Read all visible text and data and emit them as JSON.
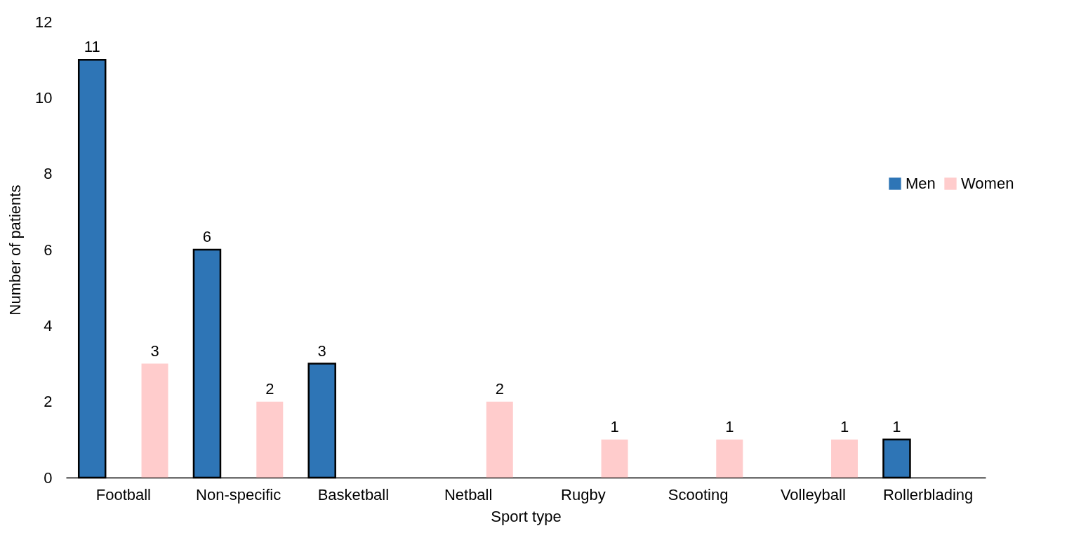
{
  "chart_data": {
    "type": "bar",
    "xlabel": "Sport type",
    "ylabel": "Number of patients",
    "categories": [
      "Football",
      "Non-specific",
      "Basketball",
      "Netball",
      "Rugby",
      "Scooting",
      "Volleyball",
      "Rollerblading"
    ],
    "series": [
      {
        "name": "Men",
        "color": "#2e75b6",
        "values": [
          11,
          6,
          3,
          null,
          null,
          null,
          null,
          1
        ]
      },
      {
        "name": "Women",
        "color": "#ffcccc",
        "values": [
          3,
          2,
          null,
          2,
          1,
          1,
          1,
          null
        ]
      }
    ],
    "ylim": [
      0,
      12
    ],
    "yticks": [
      0,
      2,
      4,
      6,
      8,
      10,
      12
    ],
    "grid": false,
    "legend": "right",
    "data_labels": true
  }
}
